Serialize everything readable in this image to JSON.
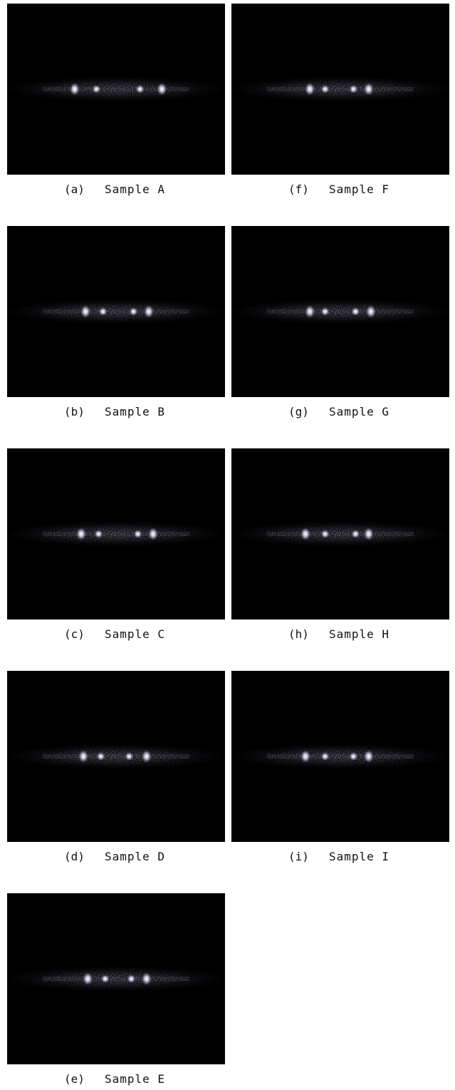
{
  "panels": [
    {
      "label": "(a)",
      "caption": "Sample A"
    },
    {
      "label": "(b)",
      "caption": "Sample B"
    },
    {
      "label": "(c)",
      "caption": "Sample C"
    },
    {
      "label": "(d)",
      "caption": "Sample D"
    },
    {
      "label": "(e)",
      "caption": "Sample E"
    },
    {
      "label": "(f)",
      "caption": "Sample F"
    },
    {
      "label": "(g)",
      "caption": "Sample G"
    },
    {
      "label": "(h)",
      "caption": "Sample H"
    },
    {
      "label": "(i)",
      "caption": "Sample I"
    }
  ]
}
